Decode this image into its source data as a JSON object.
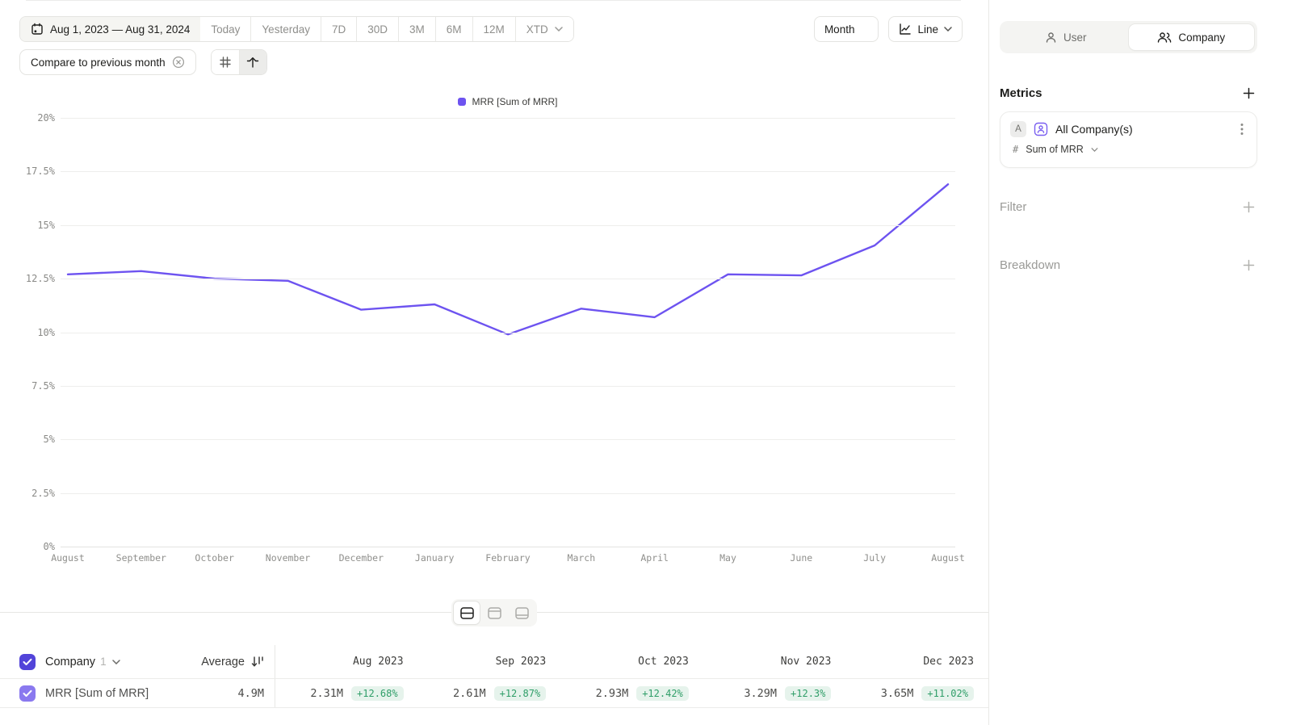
{
  "colors": {
    "accent": "#6d53f0",
    "checkbox_strong": "#5244d9",
    "checkbox_light": "#8a79ef",
    "positive": "#2f9e68",
    "positive_bg": "#e6f3ec"
  },
  "icons": {
    "calendar": "calendar-icon",
    "chevron_down": "chevron-down-icon",
    "close_circle": "close-circle-icon",
    "grid": "grid-icon",
    "arrow_up_from_line": "arrow-up-from-line-icon",
    "line_chart": "line-chart-icon",
    "user": "user-icon",
    "users": "users-icon",
    "plus": "plus-icon",
    "kebab": "kebab-menu-icon",
    "hash": "#",
    "sort_desc": "sort-descending-icon",
    "check": "checkmark-icon"
  },
  "toolbar": {
    "date_range": "Aug 1, 2023 — Aug 31, 2024",
    "quick_ranges": [
      "Today",
      "Yesterday",
      "7D",
      "30D",
      "3M",
      "6M",
      "12M"
    ],
    "xtd_label": "XTD",
    "compare_chip": "Compare to previous month",
    "granularity": "Month",
    "chart_type": "Line"
  },
  "chart_data": {
    "type": "line",
    "title": "",
    "legend": "MRR [Sum of MRR]",
    "legend_position": "top-center",
    "grid": true,
    "x": [
      "August",
      "September",
      "October",
      "November",
      "December",
      "January",
      "February",
      "March",
      "April",
      "May",
      "June",
      "July",
      "August"
    ],
    "series": [
      {
        "name": "MRR [Sum of MRR]",
        "values": [
          12.7,
          12.85,
          12.5,
          12.4,
          11.05,
          11.3,
          9.9,
          11.1,
          10.7,
          12.7,
          12.65,
          14.05,
          16.9
        ]
      }
    ],
    "ylim": [
      0,
      20
    ],
    "yticks": [
      "0%",
      "2.5%",
      "5%",
      "7.5%",
      "10%",
      "12.5%",
      "15%",
      "17.5%",
      "20%"
    ],
    "line_color": "#6d53f0"
  },
  "table": {
    "entity": "Company",
    "count": "1",
    "average_label": "Average",
    "columns": [
      "Aug 2023",
      "Sep 2023",
      "Oct 2023",
      "Nov 2023",
      "Dec 2023"
    ],
    "row": {
      "name": "MRR [Sum of MRR]",
      "average": "4.9M",
      "cells": [
        {
          "value": "2.31M",
          "delta": "+12.68%"
        },
        {
          "value": "2.61M",
          "delta": "+12.87%"
        },
        {
          "value": "2.93M",
          "delta": "+12.42%"
        },
        {
          "value": "3.29M",
          "delta": "+12.3%"
        },
        {
          "value": "3.65M",
          "delta": "+11.02%"
        }
      ]
    }
  },
  "sidebar": {
    "tabs": [
      {
        "label": "User",
        "active": false
      },
      {
        "label": "Company",
        "active": true
      }
    ],
    "metrics_title": "Metrics",
    "metric_card": {
      "badge": "A",
      "name": "All Company(s)",
      "agg_prefix": "#",
      "aggregation": "Sum of MRR"
    },
    "filter_label": "Filter",
    "breakdown_label": "Breakdown"
  }
}
